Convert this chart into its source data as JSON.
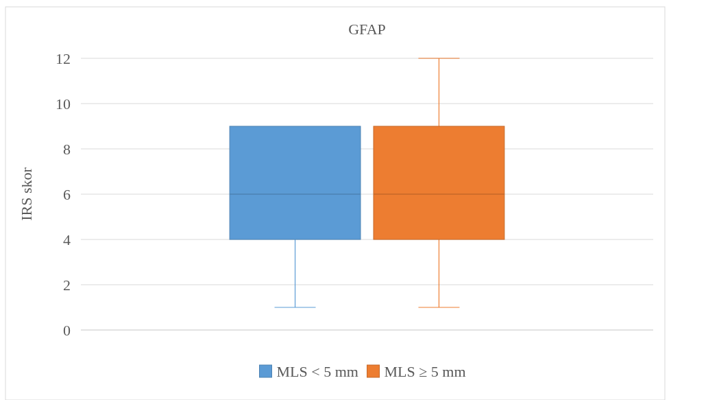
{
  "chart_data": {
    "type": "box",
    "title": "GFAP",
    "ylabel": "IRS skor",
    "categories": [
      null
    ],
    "series": [
      {
        "name": "MLS < 5 mm",
        "color": "#5b9bd5",
        "boxes": [
          {
            "low": 1,
            "q1": 4,
            "median": 6,
            "q3": 9,
            "high": 9
          }
        ]
      },
      {
        "name": "MLS ≥ 5 mm",
        "color": "#ed7d31",
        "boxes": [
          {
            "low": 1,
            "q1": 4,
            "median": 6,
            "q3": 9,
            "high": 12
          }
        ]
      }
    ],
    "ylim": [
      0,
      12
    ],
    "yticks": [
      0,
      2,
      4,
      6,
      8,
      10,
      12
    ],
    "grid": "y",
    "legend": "bottom"
  }
}
